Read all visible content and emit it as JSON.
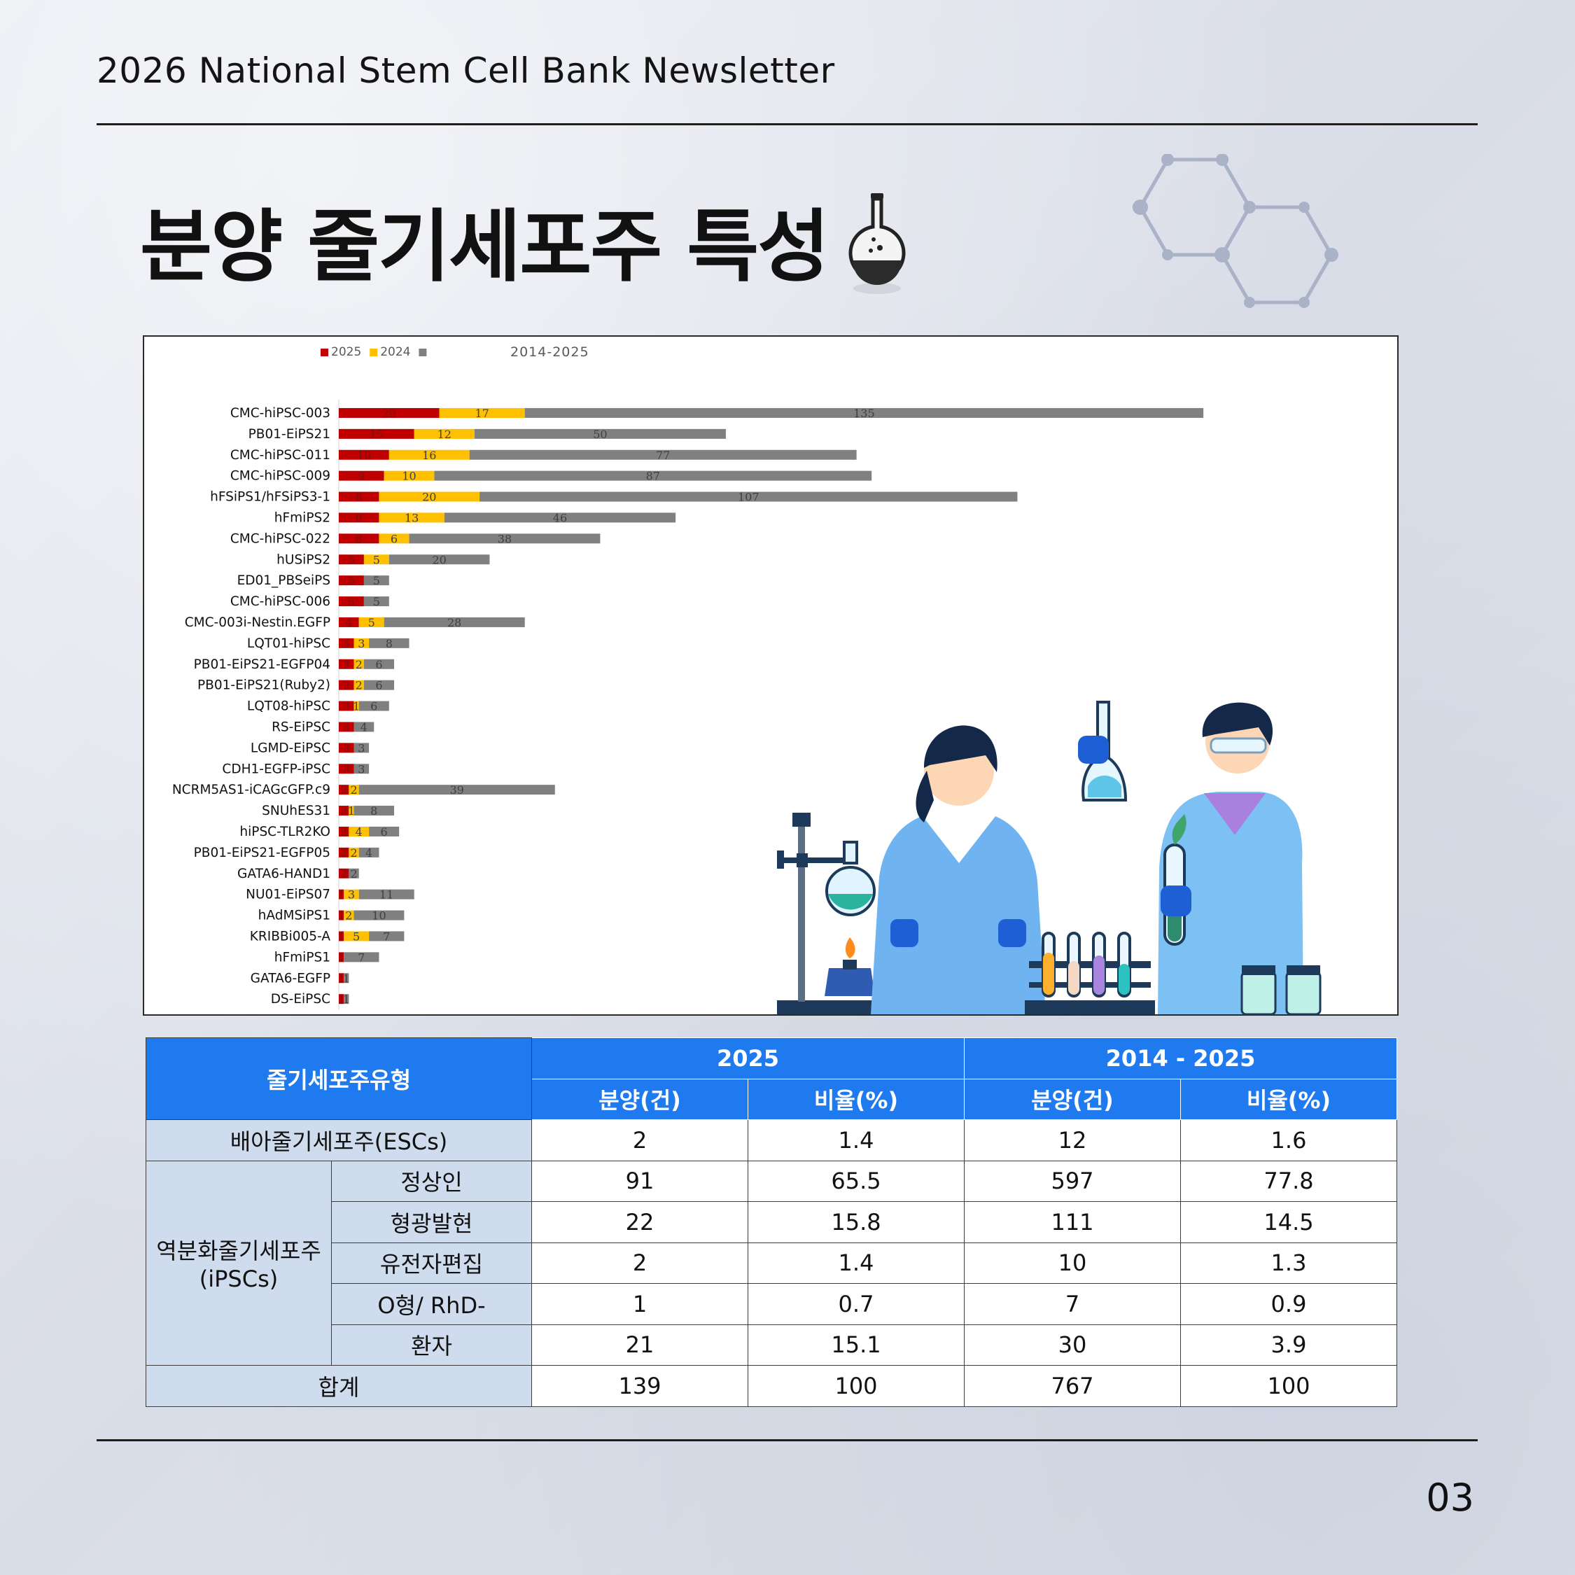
{
  "header": {
    "newsletter_title": "2026 National Stem Cell Bank Newsletter"
  },
  "main_title": "분양 줄기세포주 특성",
  "page_number": "03",
  "colors": {
    "y2025": "#c00000",
    "y2024": "#ffc000",
    "cumulative": "#808080",
    "table_header": "#1f7aef",
    "table_label_bg": "#cfdcee"
  },
  "chart_data": {
    "type": "bar",
    "orientation": "horizontal",
    "stacked": true,
    "title": "2014-2025",
    "legend": {
      "position": "top-left"
    },
    "categories": [
      "CMC-hiPSC-003",
      "PB01-EiPS21",
      "CMC-hiPSC-011",
      "CMC-hiPSC-009",
      "hFSiPS1/hFSiPS3-1",
      "hFmiPS2",
      "CMC-hiPSC-022",
      "hUSiPS2",
      "ED01_PBSeiPS",
      "CMC-hiPSC-006",
      "CMC-003i-Nestin.EGFP",
      "LQT01-hiPSC",
      "PB01-EiPS21-EGFP04",
      "PB01-EiPS21(Ruby2)",
      "LQT08-hiPSC",
      "RS-EiPSC",
      "LGMD-EiPSC",
      "CDH1-EGFP-iPSC",
      "NCRM5AS1-iCAGcGFP.c9",
      "SNUhES31",
      "hiPSC-TLR2KO",
      "PB01-EiPS21-EGFP05",
      "GATA6-HAND1",
      "NU01-EiPS07",
      "hAdMSiPS1",
      "KRIBBi005-A",
      "hFmiPS1",
      "GATA6-EGFP",
      "DS-EiPSC"
    ],
    "series": [
      {
        "name": "2025",
        "values": [
          20,
          15,
          10,
          9,
          8,
          8,
          8,
          5,
          5,
          5,
          4,
          3,
          3,
          3,
          3,
          3,
          3,
          3,
          2,
          2,
          2,
          2,
          2,
          1,
          1,
          1,
          1,
          1,
          1
        ]
      },
      {
        "name": "2024",
        "values": [
          17,
          12,
          16,
          10,
          20,
          13,
          6,
          5,
          0,
          0,
          5,
          3,
          2,
          2,
          1,
          0,
          0,
          0,
          2,
          1,
          4,
          2,
          0,
          3,
          2,
          5,
          0,
          0,
          0
        ]
      },
      {
        "name": "",
        "values": [
          135,
          50,
          77,
          87,
          107,
          46,
          38,
          20,
          5,
          5,
          28,
          8,
          6,
          6,
          6,
          4,
          3,
          3,
          39,
          8,
          6,
          4,
          2,
          11,
          10,
          7,
          7,
          1,
          1
        ]
      }
    ],
    "xlim": [
      0,
      210
    ],
    "grid": false
  },
  "table": {
    "col_type": "줄기세포주유형",
    "year_group": "2025",
    "range_group": "2014 - 2025",
    "sub_count": "분양(건)",
    "sub_ratio": "비율(%)",
    "esc_label": "배아줄기세포주(ESCs)",
    "esc_values": [
      "2",
      "1.4",
      "12",
      "1.6"
    ],
    "ipsc_label_line1": "역분화줄기세포주",
    "ipsc_label_line2": "(iPSCs)",
    "ipsc_rows": [
      {
        "label": "정상인",
        "values": [
          "91",
          "65.5",
          "597",
          "77.8"
        ]
      },
      {
        "label": "형광발현",
        "values": [
          "22",
          "15.8",
          "111",
          "14.5"
        ]
      },
      {
        "label": "유전자편집",
        "values": [
          "2",
          "1.4",
          "10",
          "1.3"
        ]
      },
      {
        "label": "O형/ RhD-",
        "values": [
          "1",
          "0.7",
          "7",
          "0.9"
        ]
      },
      {
        "label": "환자",
        "values": [
          "21",
          "15.1",
          "30",
          "3.9"
        ]
      }
    ],
    "total_label": "합계",
    "total_values": [
      "139",
      "100",
      "767",
      "100"
    ]
  }
}
